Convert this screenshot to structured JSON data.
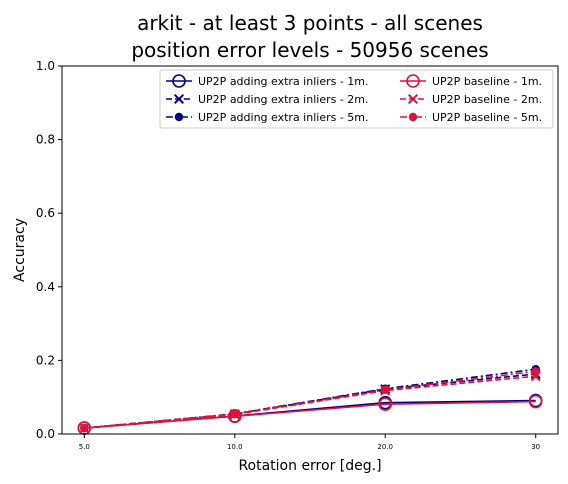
{
  "chart_data": {
    "type": "line",
    "title_line1": "arkit - at least 3 points - all scenes",
    "title_line2": "position error levels - 50956 scenes",
    "xlabel": "Rotation error [deg.]",
    "ylabel": "Accuracy",
    "categories": [
      "5.0",
      "10.0",
      "20.0",
      "30"
    ],
    "ylim": [
      0,
      1.0
    ],
    "yticks": [
      "0.0",
      "0.2",
      "0.4",
      "0.6",
      "0.8",
      "1.0"
    ],
    "grid": false,
    "legend_position": "top-right",
    "series": [
      {
        "name": "UP2P adding extra inliers - 1m.",
        "color": "#000080",
        "marker": "circle-open",
        "dash": "solid",
        "values": [
          0.016,
          0.049,
          0.085,
          0.091
        ]
      },
      {
        "name": "UP2P adding extra inliers - 2m.",
        "color": "#000080",
        "marker": "x",
        "dash": "dashed",
        "values": [
          0.016,
          0.054,
          0.122,
          0.163
        ]
      },
      {
        "name": "UP2P adding extra inliers - 5m.",
        "color": "#000080",
        "marker": "dot",
        "dash": "dashdot",
        "values": [
          0.016,
          0.055,
          0.123,
          0.176
        ]
      },
      {
        "name": "UP2P baseline - 1m.",
        "color": "#dc143c",
        "marker": "circle-open",
        "dash": "solid",
        "values": [
          0.016,
          0.048,
          0.081,
          0.088
        ]
      },
      {
        "name": "UP2P baseline - 2m.",
        "color": "#dc143c",
        "marker": "x",
        "dash": "dashed",
        "values": [
          0.016,
          0.053,
          0.118,
          0.157
        ]
      },
      {
        "name": "UP2P baseline - 5m.",
        "color": "#dc143c",
        "marker": "dot",
        "dash": "dashdot",
        "values": [
          0.016,
          0.054,
          0.12,
          0.17
        ]
      }
    ]
  }
}
